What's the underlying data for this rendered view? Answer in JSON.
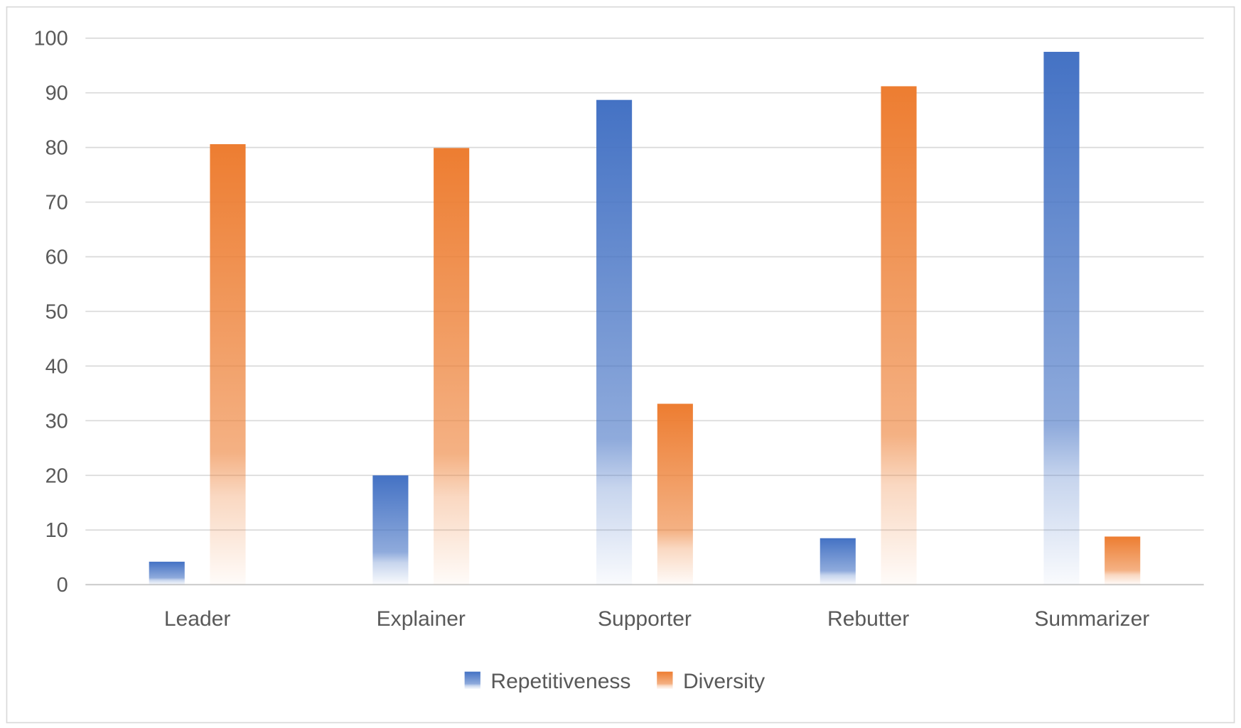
{
  "chart_data": {
    "type": "bar",
    "title": "",
    "xlabel": "",
    "ylabel": "",
    "ylim": [
      0,
      100
    ],
    "yticks": [
      0,
      10,
      20,
      30,
      40,
      50,
      60,
      70,
      80,
      90,
      100
    ],
    "grid": true,
    "legend_position": "bottom",
    "categories": [
      "Leader",
      "Explainer",
      "Supporter",
      "Rebutter",
      "Summarizer"
    ],
    "series": [
      {
        "name": "Repetitiveness",
        "color": "#4472C4",
        "values": [
          4.2,
          20.0,
          88.7,
          8.5,
          97.5
        ]
      },
      {
        "name": "Diversity",
        "color": "#ED7D31",
        "values": [
          80.6,
          79.9,
          33.1,
          91.2,
          8.8
        ]
      }
    ]
  }
}
